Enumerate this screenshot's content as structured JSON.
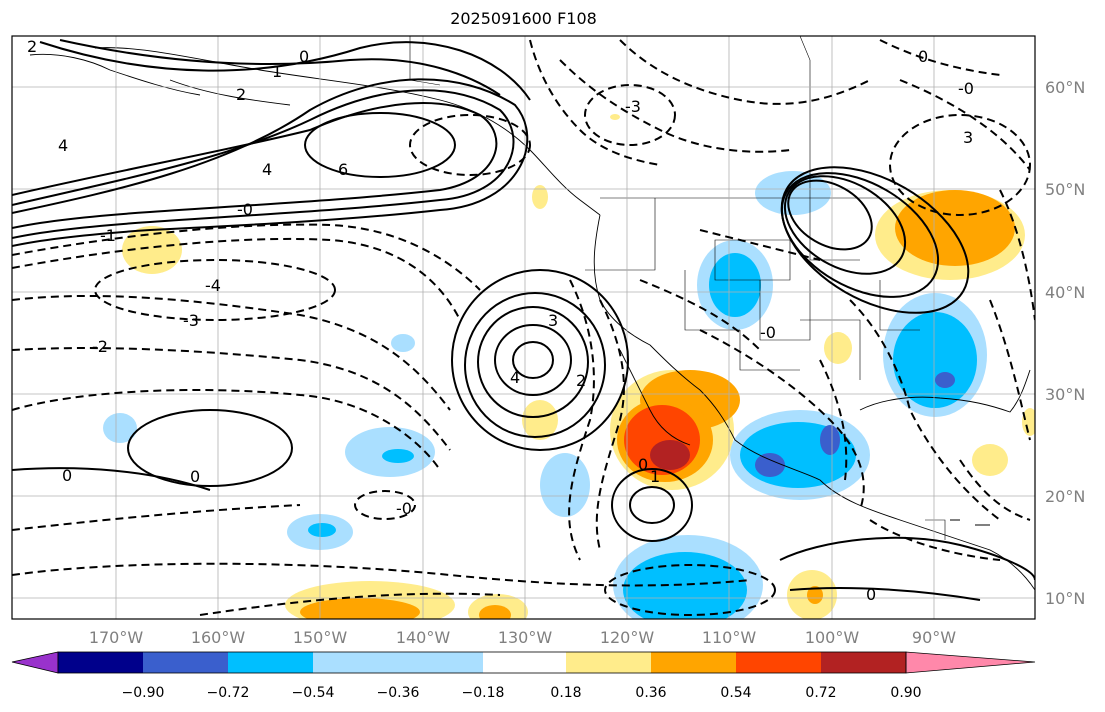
{
  "title": "2025091600 F108",
  "lat_labels": [
    "60°N",
    "50°N",
    "40°N",
    "30°N",
    "20°N",
    "10°N"
  ],
  "lon_labels": [
    "170°W",
    "160°W",
    "150°W",
    "140°W",
    "130°W",
    "120°W",
    "110°W",
    "100°W",
    "90°W"
  ],
  "colorbar": {
    "colors": [
      "#9932cc",
      "#00008b",
      "#3a5fcd",
      "#00bfff",
      "#aadfff",
      "#ffffff",
      "#ffec8b",
      "#ffa500",
      "#ff4500",
      "#b22222",
      "#ff88aa"
    ],
    "tick_labels": [
      "−0.90",
      "−0.72",
      "−0.54",
      "−0.36",
      "−0.18",
      "0.18",
      "0.36",
      "0.54",
      "0.72",
      "0.90"
    ]
  },
  "contour_labels": [
    "0",
    "1",
    "2",
    "3",
    "4",
    "6",
    "-0",
    "-1",
    "-2",
    "-3",
    "-4"
  ]
}
